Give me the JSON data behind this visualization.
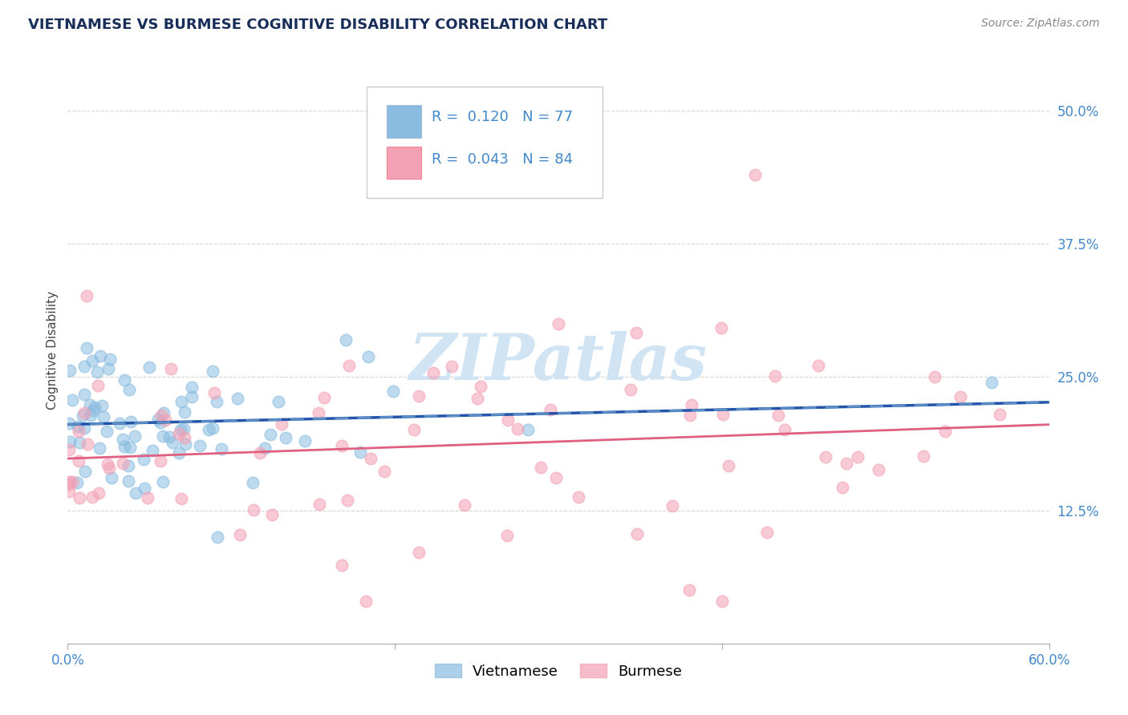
{
  "title": "VIETNAMESE VS BURMESE COGNITIVE DISABILITY CORRELATION CHART",
  "source": "Source: ZipAtlas.com",
  "ylabel": "Cognitive Disability",
  "background_color": "#ffffff",
  "grid_color": "#cccccc",
  "title_color": "#1a2e5a",
  "source_color": "#888888",
  "viet_color": "#89bce0",
  "burm_color": "#f4a0b5",
  "viet_line_color": "#2255aa",
  "burm_line_color": "#e06080",
  "viet_dash_color": "#6699cc",
  "viet_R": 0.12,
  "viet_N": 77,
  "burm_R": 0.043,
  "burm_N": 84,
  "watermark_color": "#d0e4f4",
  "xlim": [
    0.0,
    0.6
  ],
  "ylim": [
    0.0,
    0.55
  ],
  "yticks": [
    0.125,
    0.25,
    0.375,
    0.5
  ],
  "ytick_labels": [
    "12.5%",
    "25.0%",
    "37.5%",
    "50.0%"
  ],
  "tick_color": "#4488cc",
  "title_fontsize": 13,
  "source_fontsize": 10,
  "axis_label_fontsize": 11,
  "tick_fontsize": 12,
  "legend_fontsize": 13
}
